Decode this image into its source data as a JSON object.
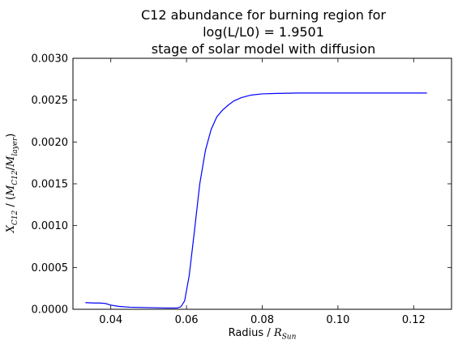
{
  "chart_data": {
    "type": "line",
    "title_lines": [
      "C12 abundance for burning region for",
      "log(L/L0) = 1.9501",
      "stage of solar model with diffusion"
    ],
    "xlabel": "Radius / R_Sun",
    "ylabel": "X_C12 / (M_C12/M_layer)",
    "xlim": [
      0.03,
      0.13
    ],
    "ylim": [
      0.0,
      0.003
    ],
    "x_ticks": [
      "0.04",
      "0.06",
      "0.08",
      "0.10",
      "0.12"
    ],
    "y_ticks": [
      "0.0000",
      "0.0005",
      "0.0010",
      "0.0015",
      "0.0020",
      "0.0025",
      "0.0030"
    ],
    "grid": false,
    "series": [
      {
        "color": "#0000ff",
        "x": [
          0.0333,
          0.0355,
          0.037,
          0.0385,
          0.04,
          0.042,
          0.045,
          0.05,
          0.055,
          0.0575,
          0.0585,
          0.0595,
          0.0607,
          0.062,
          0.0635,
          0.065,
          0.0665,
          0.068,
          0.0695,
          0.071,
          0.0725,
          0.0745,
          0.077,
          0.08,
          0.084,
          0.09,
          0.1,
          0.11,
          0.1235
        ],
        "y": [
          8e-05,
          7.5e-05,
          7.5e-05,
          7e-05,
          5e-05,
          3.5e-05,
          2.5e-05,
          2e-05,
          1.5e-05,
          1.5e-05,
          3e-05,
          0.0001,
          0.0004,
          0.0009,
          0.0015,
          0.0019,
          0.00215,
          0.0023,
          0.00238,
          0.00244,
          0.00249,
          0.00253,
          0.00256,
          0.002575,
          0.00258,
          0.002585,
          0.002585,
          0.002585,
          0.002585
        ]
      }
    ]
  }
}
